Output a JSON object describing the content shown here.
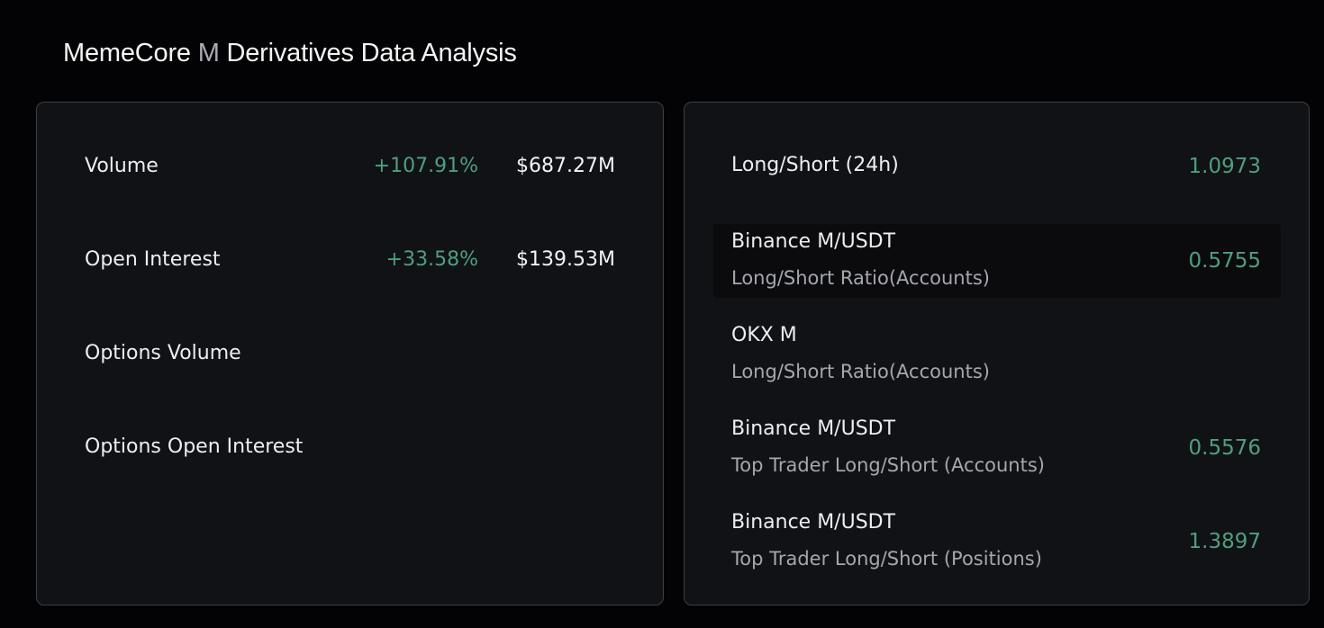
{
  "header": {
    "title_prefix": "MemeCore ",
    "title_ticker": "M",
    "title_suffix": " Derivatives Data Analysis"
  },
  "market_metrics": [
    {
      "label": "Volume",
      "change": "+107.91%",
      "value": "$687.27M"
    },
    {
      "label": "Open Interest",
      "change": "+33.58%",
      "value": "$139.53M"
    },
    {
      "label": "Options Volume",
      "change": "",
      "value": ""
    },
    {
      "label": "Options Open Interest",
      "change": "",
      "value": ""
    }
  ],
  "ratios": {
    "overall": {
      "label": "Long/Short (24h)",
      "value": "1.0973"
    },
    "items": [
      {
        "exchange": "Binance M/USDT",
        "metric": "Long/Short Ratio(Accounts)",
        "value": "0.5755"
      },
      {
        "exchange": "OKX M",
        "metric": "Long/Short Ratio(Accounts)",
        "value": ""
      },
      {
        "exchange": "Binance M/USDT",
        "metric": "Top Trader Long/Short (Accounts)",
        "value": "0.5576"
      },
      {
        "exchange": "Binance M/USDT",
        "metric": "Top Trader Long/Short (Positions)",
        "value": "1.3897"
      }
    ]
  },
  "colors": {
    "background": "#030306",
    "card": "#111216",
    "card_border": "#3c3f46",
    "positive": "#4f9f7e",
    "text_primary": "#eceef1",
    "text_secondary": "#a4a7ae"
  }
}
